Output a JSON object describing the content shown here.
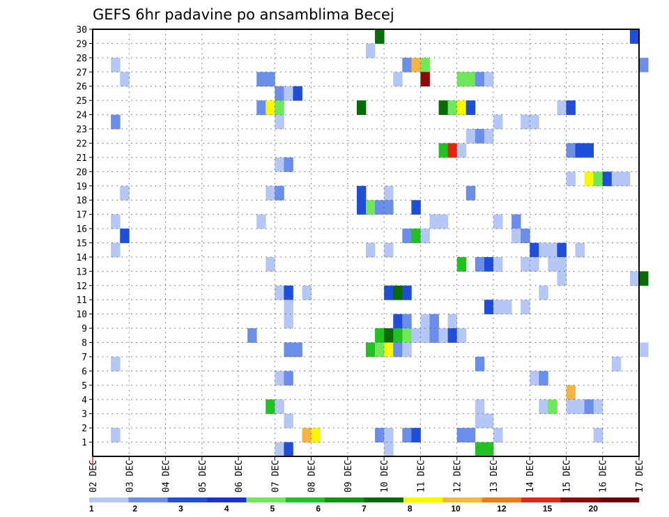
{
  "chart_data": {
    "type": "heatmap",
    "title": "GEFS 6hr padavine po ansamblima Becej",
    "xlabel": "",
    "ylabel": "",
    "x_tick_labels": [
      "02 DEC",
      "03 DEC",
      "04 DEC",
      "05 DEC",
      "06 DEC",
      "07 DEC",
      "08 DEC",
      "09 DEC",
      "10 DEC",
      "11 DEC",
      "12 DEC",
      "13 DEC",
      "14 DEC",
      "15 DEC",
      "16 DEC",
      "17 DEC"
    ],
    "xlim_days": [
      0,
      15
    ],
    "y_tick_labels": [
      "1",
      "2",
      "3",
      "4",
      "5",
      "6",
      "7",
      "8",
      "9",
      "10",
      "11",
      "12",
      "13",
      "14",
      "15",
      "16",
      "17",
      "18",
      "19",
      "20",
      "21",
      "22",
      "23",
      "24",
      "25",
      "26",
      "27",
      "28",
      "29",
      "30"
    ],
    "ylim": [
      0,
      30
    ],
    "grid": true,
    "colorbar": {
      "labels": [
        "1",
        "2",
        "3",
        "4",
        "5",
        "6",
        "7",
        "8",
        "10",
        "12",
        "15",
        "20"
      ],
      "colors": [
        "#b4c7f5",
        "#6b8ee8",
        "#1f4fd8",
        "#1a2fd6",
        "#6fe85a",
        "#22c022",
        "#0a9a0a",
        "#086b08",
        "#f8f800",
        "#f8b440",
        "#f07a1a",
        "#e02810",
        "#8c0a0a",
        "#6e0000"
      ]
    },
    "cells": [
      {
        "member": 30,
        "day": 7.75,
        "class": 8
      },
      {
        "member": 30,
        "day": 14.75,
        "class": 3
      },
      {
        "member": 29,
        "day": 7.5,
        "class": 1
      },
      {
        "member": 28,
        "day": 0.5,
        "class": 1
      },
      {
        "member": 28,
        "day": 8.5,
        "class": 2
      },
      {
        "member": 28,
        "day": 8.75,
        "class": 10
      },
      {
        "member": 28,
        "day": 9.0,
        "class": 5
      },
      {
        "member": 28,
        "day": 15.0,
        "class": 2
      },
      {
        "member": 27,
        "day": 0.75,
        "class": 1
      },
      {
        "member": 27,
        "day": 4.5,
        "class": 2
      },
      {
        "member": 27,
        "day": 4.75,
        "class": 2
      },
      {
        "member": 27,
        "day": 8.25,
        "class": 1
      },
      {
        "member": 27,
        "day": 9.0,
        "class": 13
      },
      {
        "member": 27,
        "day": 10.0,
        "class": 5
      },
      {
        "member": 27,
        "day": 10.25,
        "class": 5
      },
      {
        "member": 27,
        "day": 10.5,
        "class": 2
      },
      {
        "member": 27,
        "day": 10.75,
        "class": 1
      },
      {
        "member": 26,
        "day": 5.0,
        "class": 2
      },
      {
        "member": 26,
        "day": 5.25,
        "class": 1
      },
      {
        "member": 26,
        "day": 5.5,
        "class": 3
      },
      {
        "member": 25,
        "day": 4.5,
        "class": 2
      },
      {
        "member": 25,
        "day": 4.75,
        "class": 9
      },
      {
        "member": 25,
        "day": 5.0,
        "class": 5
      },
      {
        "member": 25,
        "day": 7.25,
        "class": 8
      },
      {
        "member": 25,
        "day": 9.5,
        "class": 8
      },
      {
        "member": 25,
        "day": 9.75,
        "class": 5
      },
      {
        "member": 25,
        "day": 10.0,
        "class": 9
      },
      {
        "member": 25,
        "day": 10.25,
        "class": 3
      },
      {
        "member": 25,
        "day": 12.75,
        "class": 1
      },
      {
        "member": 25,
        "day": 13.0,
        "class": 3
      },
      {
        "member": 24,
        "day": 0.5,
        "class": 2
      },
      {
        "member": 24,
        "day": 5.0,
        "class": 1
      },
      {
        "member": 24,
        "day": 11.0,
        "class": 1
      },
      {
        "member": 24,
        "day": 11.75,
        "class": 1
      },
      {
        "member": 24,
        "day": 12.0,
        "class": 1
      },
      {
        "member": 23,
        "day": 10.25,
        "class": 1
      },
      {
        "member": 23,
        "day": 10.5,
        "class": 2
      },
      {
        "member": 23,
        "day": 10.75,
        "class": 1
      },
      {
        "member": 22,
        "day": 9.5,
        "class": 6
      },
      {
        "member": 22,
        "day": 9.75,
        "class": 12
      },
      {
        "member": 22,
        "day": 10.0,
        "class": 1
      },
      {
        "member": 22,
        "day": 13.0,
        "class": 2
      },
      {
        "member": 22,
        "day": 13.25,
        "class": 3
      },
      {
        "member": 22,
        "day": 13.5,
        "class": 3
      },
      {
        "member": 21,
        "day": 5.0,
        "class": 1
      },
      {
        "member": 21,
        "day": 5.25,
        "class": 2
      },
      {
        "member": 20,
        "day": 13.0,
        "class": 1
      },
      {
        "member": 20,
        "day": 13.5,
        "class": 9
      },
      {
        "member": 20,
        "day": 13.75,
        "class": 5
      },
      {
        "member": 20,
        "day": 14.0,
        "class": 3
      },
      {
        "member": 20,
        "day": 14.25,
        "class": 1
      },
      {
        "member": 20,
        "day": 14.5,
        "class": 1
      },
      {
        "member": 19,
        "day": 0.75,
        "class": 1
      },
      {
        "member": 19,
        "day": 4.75,
        "class": 1
      },
      {
        "member": 19,
        "day": 5.0,
        "class": 2
      },
      {
        "member": 19,
        "day": 7.25,
        "class": 3
      },
      {
        "member": 19,
        "day": 8.0,
        "class": 1
      },
      {
        "member": 19,
        "day": 10.25,
        "class": 2
      },
      {
        "member": 18,
        "day": 7.25,
        "class": 3
      },
      {
        "member": 18,
        "day": 7.5,
        "class": 5
      },
      {
        "member": 18,
        "day": 7.75,
        "class": 2
      },
      {
        "member": 18,
        "day": 8.0,
        "class": 2
      },
      {
        "member": 18,
        "day": 8.75,
        "class": 3
      },
      {
        "member": 17,
        "day": 0.5,
        "class": 1
      },
      {
        "member": 17,
        "day": 4.5,
        "class": 1
      },
      {
        "member": 17,
        "day": 9.25,
        "class": 1
      },
      {
        "member": 17,
        "day": 9.5,
        "class": 1
      },
      {
        "member": 17,
        "day": 11.0,
        "class": 1
      },
      {
        "member": 17,
        "day": 11.5,
        "class": 2
      },
      {
        "member": 16,
        "day": 0.75,
        "class": 3
      },
      {
        "member": 16,
        "day": 8.5,
        "class": 2
      },
      {
        "member": 16,
        "day": 8.75,
        "class": 6
      },
      {
        "member": 16,
        "day": 9.0,
        "class": 1
      },
      {
        "member": 16,
        "day": 11.5,
        "class": 1
      },
      {
        "member": 16,
        "day": 11.75,
        "class": 2
      },
      {
        "member": 15,
        "day": 0.5,
        "class": 1
      },
      {
        "member": 15,
        "day": 7.5,
        "class": 1
      },
      {
        "member": 15,
        "day": 8.0,
        "class": 1
      },
      {
        "member": 15,
        "day": 12.0,
        "class": 3
      },
      {
        "member": 15,
        "day": 12.25,
        "class": 1
      },
      {
        "member": 15,
        "day": 12.5,
        "class": 1
      },
      {
        "member": 15,
        "day": 12.75,
        "class": 3
      },
      {
        "member": 15,
        "day": 13.25,
        "class": 1
      },
      {
        "member": 14,
        "day": 4.75,
        "class": 1
      },
      {
        "member": 14,
        "day": 10.0,
        "class": 6
      },
      {
        "member": 14,
        "day": 10.5,
        "class": 2
      },
      {
        "member": 14,
        "day": 10.75,
        "class": 3
      },
      {
        "member": 14,
        "day": 11.0,
        "class": 1
      },
      {
        "member": 14,
        "day": 11.75,
        "class": 1
      },
      {
        "member": 14,
        "day": 12.0,
        "class": 1
      },
      {
        "member": 14,
        "day": 12.5,
        "class": 1
      },
      {
        "member": 14,
        "day": 12.75,
        "class": 1
      },
      {
        "member": 13,
        "day": 12.75,
        "class": 1
      },
      {
        "member": 13,
        "day": 14.75,
        "class": 1
      },
      {
        "member": 13,
        "day": 15.0,
        "class": 8
      },
      {
        "member": 12,
        "day": 5.0,
        "class": 1
      },
      {
        "member": 12,
        "day": 5.25,
        "class": 3
      },
      {
        "member": 12,
        "day": 5.75,
        "class": 1
      },
      {
        "member": 12,
        "day": 8.0,
        "class": 3
      },
      {
        "member": 12,
        "day": 8.25,
        "class": 8
      },
      {
        "member": 12,
        "day": 8.5,
        "class": 3
      },
      {
        "member": 12,
        "day": 12.25,
        "class": 1
      },
      {
        "member": 11,
        "day": 5.25,
        "class": 1
      },
      {
        "member": 11,
        "day": 10.75,
        "class": 3
      },
      {
        "member": 11,
        "day": 11.0,
        "class": 1
      },
      {
        "member": 11,
        "day": 11.25,
        "class": 1
      },
      {
        "member": 11,
        "day": 11.75,
        "class": 1
      },
      {
        "member": 10,
        "day": 5.25,
        "class": 1
      },
      {
        "member": 10,
        "day": 8.25,
        "class": 3
      },
      {
        "member": 10,
        "day": 8.5,
        "class": 2
      },
      {
        "member": 10,
        "day": 9.0,
        "class": 1
      },
      {
        "member": 10,
        "day": 9.25,
        "class": 2
      },
      {
        "member": 10,
        "day": 9.75,
        "class": 1
      },
      {
        "member": 9,
        "day": 4.25,
        "class": 2
      },
      {
        "member": 9,
        "day": 7.75,
        "class": 6
      },
      {
        "member": 9,
        "day": 8.0,
        "class": 8
      },
      {
        "member": 9,
        "day": 8.25,
        "class": 6
      },
      {
        "member": 9,
        "day": 8.5,
        "class": 5
      },
      {
        "member": 9,
        "day": 8.75,
        "class": 1
      },
      {
        "member": 9,
        "day": 9.0,
        "class": 1
      },
      {
        "member": 9,
        "day": 9.25,
        "class": 2
      },
      {
        "member": 9,
        "day": 9.5,
        "class": 1
      },
      {
        "member": 9,
        "day": 9.75,
        "class": 3
      },
      {
        "member": 9,
        "day": 10.0,
        "class": 1
      },
      {
        "member": 8,
        "day": 5.25,
        "class": 2
      },
      {
        "member": 8,
        "day": 5.5,
        "class": 2
      },
      {
        "member": 8,
        "day": 7.5,
        "class": 6
      },
      {
        "member": 8,
        "day": 7.75,
        "class": 5
      },
      {
        "member": 8,
        "day": 8.0,
        "class": 9
      },
      {
        "member": 8,
        "day": 8.25,
        "class": 2
      },
      {
        "member": 8,
        "day": 8.5,
        "class": 1
      },
      {
        "member": 8,
        "day": 15.0,
        "class": 1
      },
      {
        "member": 7,
        "day": 0.5,
        "class": 1
      },
      {
        "member": 7,
        "day": 10.5,
        "class": 2
      },
      {
        "member": 7,
        "day": 14.25,
        "class": 1
      },
      {
        "member": 6,
        "day": 5.0,
        "class": 1
      },
      {
        "member": 6,
        "day": 5.25,
        "class": 2
      },
      {
        "member": 6,
        "day": 12.0,
        "class": 1
      },
      {
        "member": 6,
        "day": 12.25,
        "class": 2
      },
      {
        "member": 5,
        "day": 13.0,
        "class": 10
      },
      {
        "member": 4,
        "day": 4.75,
        "class": 6
      },
      {
        "member": 4,
        "day": 5.0,
        "class": 1
      },
      {
        "member": 4,
        "day": 10.5,
        "class": 1
      },
      {
        "member": 4,
        "day": 12.25,
        "class": 1
      },
      {
        "member": 4,
        "day": 12.5,
        "class": 5
      },
      {
        "member": 4,
        "day": 13.0,
        "class": 1
      },
      {
        "member": 4,
        "day": 13.25,
        "class": 1
      },
      {
        "member": 4,
        "day": 13.5,
        "class": 2
      },
      {
        "member": 4,
        "day": 13.75,
        "class": 1
      },
      {
        "member": 3,
        "day": 5.25,
        "class": 1
      },
      {
        "member": 3,
        "day": 10.5,
        "class": 1
      },
      {
        "member": 3,
        "day": 10.75,
        "class": 1
      },
      {
        "member": 2,
        "day": 0.5,
        "class": 1
      },
      {
        "member": 2,
        "day": 5.75,
        "class": 10
      },
      {
        "member": 2,
        "day": 6.0,
        "class": 9
      },
      {
        "member": 2,
        "day": 7.75,
        "class": 2
      },
      {
        "member": 2,
        "day": 8.0,
        "class": 1
      },
      {
        "member": 2,
        "day": 8.5,
        "class": 2
      },
      {
        "member": 2,
        "day": 8.75,
        "class": 3
      },
      {
        "member": 2,
        "day": 10.0,
        "class": 2
      },
      {
        "member": 2,
        "day": 10.25,
        "class": 2
      },
      {
        "member": 2,
        "day": 11.0,
        "class": 1
      },
      {
        "member": 2,
        "day": 13.75,
        "class": 1
      },
      {
        "member": 1,
        "day": 5.0,
        "class": 1
      },
      {
        "member": 1,
        "day": 5.25,
        "class": 3
      },
      {
        "member": 1,
        "day": 8.0,
        "class": 1
      },
      {
        "member": 1,
        "day": 10.5,
        "class": 6
      },
      {
        "member": 1,
        "day": 10.75,
        "class": 6
      }
    ]
  }
}
